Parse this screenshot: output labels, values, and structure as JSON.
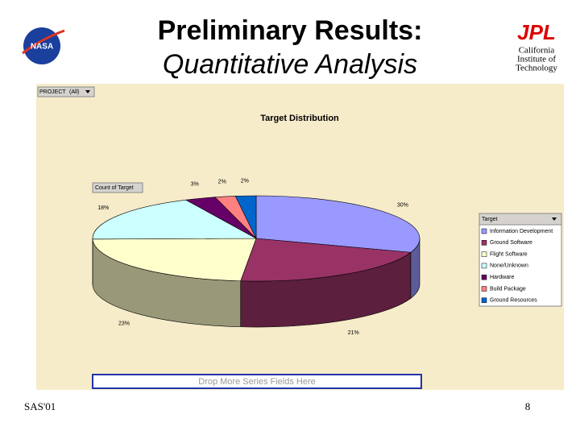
{
  "header": {
    "title": "Preliminary Results:",
    "subtitle": "Quantitative Analysis"
  },
  "logos": {
    "left": "NASA",
    "right": "JPL",
    "institute": [
      "California",
      "Institute of",
      "Technology"
    ]
  },
  "pivot": {
    "page_field": "PROJECT",
    "page_value": "(All)",
    "data_field": "Count of Target",
    "drop_zone": "Drop More Series Fields Here"
  },
  "chart_data": {
    "type": "pie",
    "title": "Target Distribution",
    "legend_title": "Target",
    "legend": "right",
    "categories": [
      "Information Development",
      "Ground Software",
      "Flight Software",
      "None/Unknown",
      "Hardware",
      "Build Package",
      "Ground Resources"
    ],
    "values": [
      30,
      21,
      23,
      18,
      3,
      2,
      2
    ],
    "value_labels": [
      "30%",
      "21%",
      "23%",
      "18%",
      "3%",
      "2%",
      "2%"
    ],
    "colors": [
      "#9999ff",
      "#993366",
      "#ffffcc",
      "#ccffff",
      "#660066",
      "#ff8080",
      "#0066cc"
    ]
  },
  "footer": {
    "left": "SAS'01",
    "right": "8"
  }
}
